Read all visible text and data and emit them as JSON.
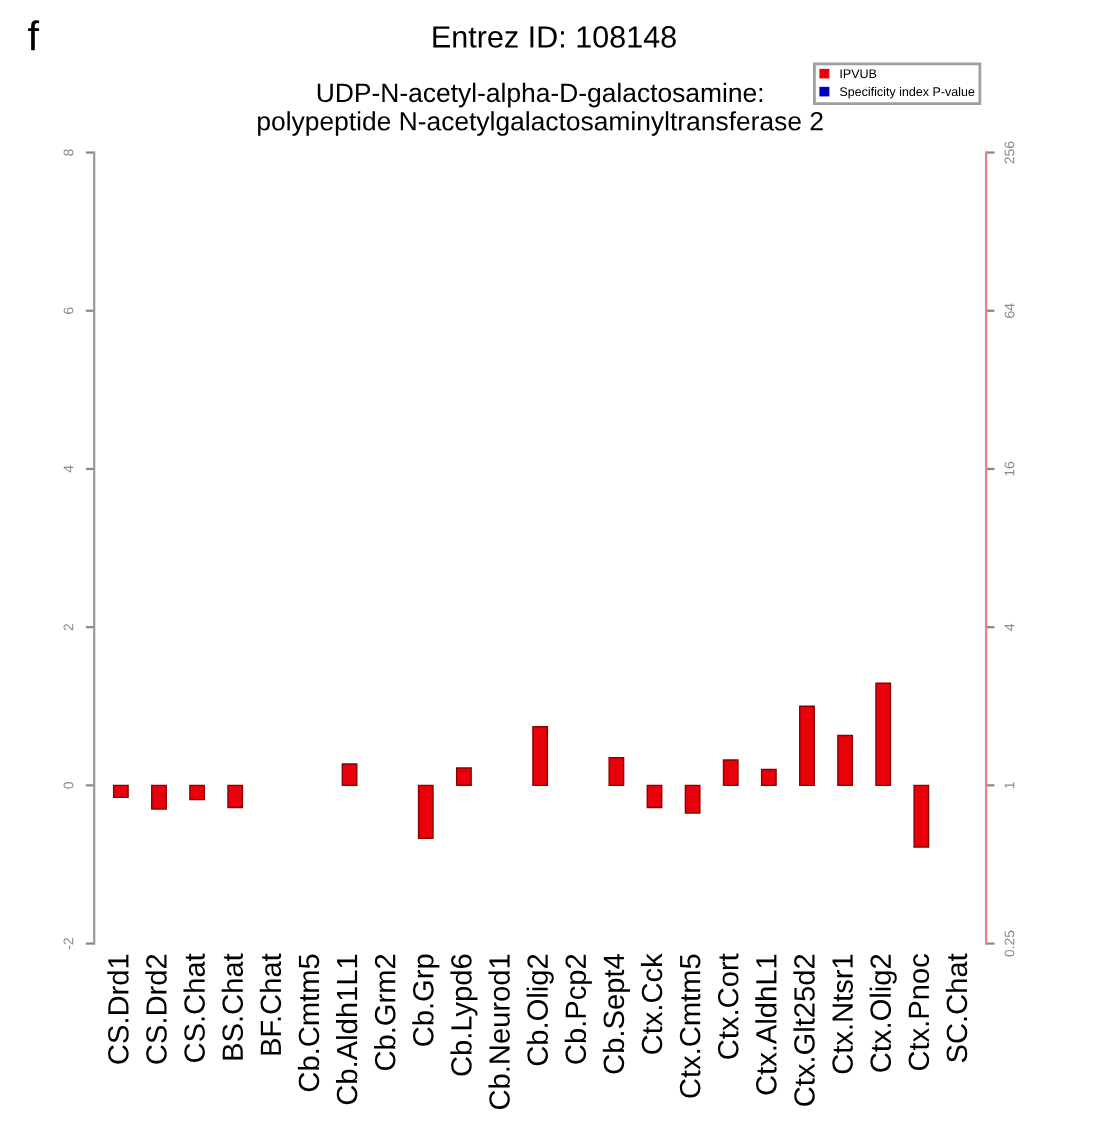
{
  "chart_data": {
    "type": "bar",
    "title": "Entrez ID: 108148",
    "subtitle": "UDP-N-acetyl-alpha-D-galactosamine:\npolypeptide N-acetylgalactosaminyltransferase 2",
    "annotations": [
      "f"
    ],
    "categories": [
      "CS.Drd1",
      "CS.Drd2",
      "CS.Chat",
      "BS.Chat",
      "BF.Chat",
      "Cb.Cmtm5",
      "Cb.Aldh1L1",
      "Cb.Grm2",
      "Cb.Grp",
      "Cb.Lypd6",
      "Cb.Neurod1",
      "Cb.Olig2",
      "Cb.Pcp2",
      "Cb.Sept4",
      "Ctx.Cck",
      "Ctx.Cmtm5",
      "Ctx.Cort",
      "Ctx.AldhL1",
      "Ctx.Glt25d2",
      "Ctx.Ntsr1",
      "Ctx.Olig2",
      "Ctx.Pnoc",
      "SC.Chat"
    ],
    "series": [
      {
        "name": "IPVUB",
        "color": "#e8000b",
        "values": [
          -0.15,
          -0.3,
          -0.18,
          -0.28,
          null,
          null,
          0.27,
          null,
          -0.67,
          0.22,
          null,
          0.74,
          null,
          0.35,
          -0.28,
          -0.35,
          0.32,
          0.2,
          1.0,
          0.63,
          1.29,
          -0.78,
          null
        ]
      },
      {
        "name": "Specificity index P-value",
        "color": "#0000cc",
        "values": [
          null,
          null,
          null,
          null,
          null,
          null,
          null,
          null,
          null,
          null,
          null,
          null,
          null,
          null,
          null,
          null,
          null,
          null,
          null,
          null,
          null,
          null,
          null
        ]
      }
    ],
    "ylim": [
      -2,
      8
    ],
    "yticks": [
      -2,
      0,
      2,
      4,
      6,
      8
    ],
    "y2lim": [
      0.25,
      256
    ],
    "y2ticks": [
      0.25,
      1,
      4,
      16,
      64,
      256
    ],
    "log": "y2",
    "grid": false,
    "legend": "top right"
  }
}
